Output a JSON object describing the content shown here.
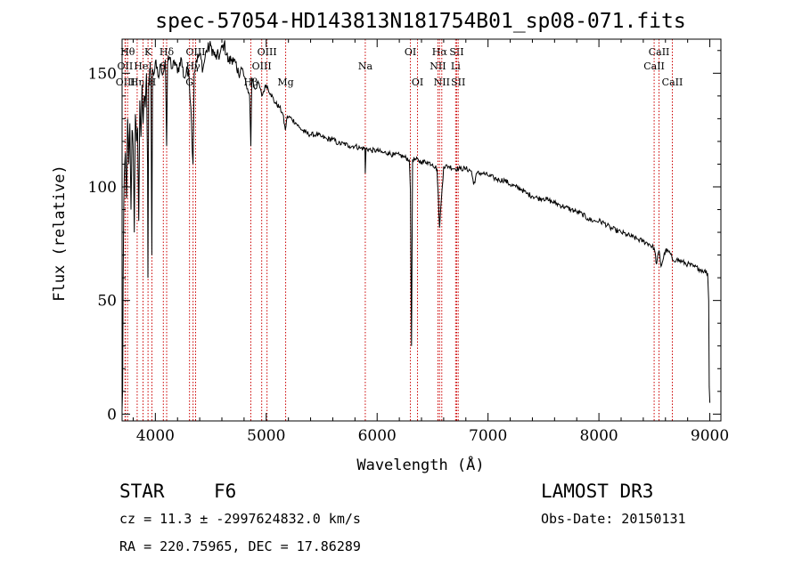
{
  "chart_data": {
    "type": "line",
    "title": "spec-57054-HD143813N181754B01_sp08-071.fits",
    "xlabel": "Wavelength (Å)",
    "ylabel": "Flux (relative)",
    "xlim": [
      3700,
      9100
    ],
    "ylim": [
      -3,
      165
    ],
    "x_ticks": [
      4000,
      5000,
      6000,
      7000,
      8000,
      9000
    ],
    "y_ticks": [
      0,
      50,
      100,
      150
    ],
    "grid": false,
    "series": [
      {
        "name": "spectrum",
        "x": [
          3700,
          3705,
          3710,
          3715,
          3720,
          3730,
          3740,
          3750,
          3760,
          3770,
          3780,
          3790,
          3800,
          3810,
          3820,
          3830,
          3840,
          3850,
          3860,
          3870,
          3880,
          3890,
          3900,
          3910,
          3920,
          3930,
          3933,
          3940,
          3950,
          3960,
          3968,
          3975,
          3990,
          4000,
          4010,
          4030,
          4050,
          4070,
          4090,
          4102,
          4110,
          4130,
          4150,
          4180,
          4200,
          4230,
          4260,
          4300,
          4320,
          4340,
          4350,
          4370,
          4400,
          4430,
          4460,
          4500,
          4540,
          4580,
          4620,
          4660,
          4700,
          4740,
          4780,
          4820,
          4850,
          4861,
          4870,
          4900,
          4930,
          4960,
          5000,
          5040,
          5080,
          5120,
          5150,
          5172,
          5190,
          5230,
          5270,
          5300,
          5350,
          5400,
          5450,
          5500,
          5550,
          5600,
          5650,
          5700,
          5750,
          5800,
          5850,
          5890,
          5893,
          5900,
          5950,
          6000,
          6050,
          6100,
          6150,
          6200,
          6250,
          6290,
          6300,
          6310,
          6320,
          6350,
          6400,
          6450,
          6500,
          6540,
          6563,
          6580,
          6600,
          6650,
          6700,
          6750,
          6800,
          6850,
          6870,
          6900,
          6950,
          7000,
          7050,
          7100,
          7150,
          7200,
          7250,
          7300,
          7350,
          7400,
          7450,
          7500,
          7550,
          7600,
          7650,
          7700,
          7750,
          7800,
          7850,
          7900,
          7950,
          8000,
          8050,
          8100,
          8150,
          8200,
          8250,
          8300,
          8350,
          8400,
          8450,
          8498,
          8520,
          8542,
          8560,
          8600,
          8640,
          8662,
          8700,
          8750,
          8800,
          8850,
          8900,
          8950,
          8980,
          8990,
          8995,
          9000
        ],
        "y": [
          2,
          10,
          60,
          92,
          105,
          115,
          95,
          130,
          110,
          128,
          90,
          125,
          118,
          80,
          132,
          120,
          126,
          85,
          138,
          122,
          145,
          128,
          140,
          135,
          150,
          110,
          60,
          145,
          152,
          148,
          70,
          152,
          150,
          155,
          152,
          148,
          154,
          150,
          156,
          118,
          154,
          157,
          152,
          155,
          150,
          157,
          148,
          152,
          135,
          110,
          150,
          156,
          158,
          152,
          160,
          162,
          157,
          158,
          163,
          155,
          157,
          150,
          152,
          145,
          140,
          118,
          148,
          143,
          146,
          140,
          145,
          141,
          137,
          135,
          132,
          125,
          131,
          130,
          128,
          126,
          124,
          123,
          123,
          122,
          121,
          121,
          119,
          119,
          118,
          118,
          117,
          117,
          106,
          117,
          116,
          116,
          115,
          115,
          114,
          114,
          113,
          112,
          98,
          30,
          112,
          112,
          111,
          111,
          110,
          108,
          82,
          95,
          109,
          109,
          108,
          108,
          108,
          107,
          101,
          106,
          106,
          105,
          104,
          103,
          103,
          101,
          100,
          99,
          97,
          96,
          95,
          95,
          94,
          93,
          92,
          91,
          90,
          89,
          88,
          86,
          85,
          85,
          84,
          82,
          81,
          80,
          79,
          78,
          77,
          76,
          75,
          73,
          66,
          72,
          65,
          72,
          71,
          68,
          68,
          67,
          66,
          65,
          64,
          63,
          62,
          50,
          12,
          5
        ]
      }
    ],
    "line_markers": [
      {
        "label": "Hθ",
        "x": 3750,
        "row": 1
      },
      {
        "label": "OII",
        "x": 3727,
        "row": 2
      },
      {
        "label": "OIII",
        "x": 3730,
        "row": 3
      },
      {
        "label": "Hη",
        "x": 3836,
        "row": 3
      },
      {
        "label": "K",
        "x": 3934,
        "row": 1
      },
      {
        "label": "HeI",
        "x": 3889,
        "row": 2
      },
      {
        "label": "H",
        "x": 3969,
        "row": 3
      },
      {
        "label": "Hδ",
        "x": 4102,
        "row": 1
      },
      {
        "label": "S",
        "x": 4072,
        "row": 2
      },
      {
        "label": "OIII",
        "x": 4363,
        "row": 1
      },
      {
        "label": "Hγ",
        "x": 4340,
        "row": 2
      },
      {
        "label": "G",
        "x": 4308,
        "row": 3
      },
      {
        "label": "OIII",
        "x": 5007,
        "row": 1
      },
      {
        "label": "OIII",
        "x": 4959,
        "row": 2
      },
      {
        "label": "Hβ",
        "x": 4861,
        "row": 3
      },
      {
        "label": "Mg",
        "x": 5175,
        "row": 3
      },
      {
        "label": "Na",
        "x": 5893,
        "row": 2
      },
      {
        "label": "OI",
        "x": 6300,
        "row": 1
      },
      {
        "label": "OI",
        "x": 6364,
        "row": 3
      },
      {
        "label": "Hα",
        "x": 6563,
        "row": 1
      },
      {
        "label": "SII",
        "x": 6717,
        "row": 1
      },
      {
        "label": "NII",
        "x": 6548,
        "row": 2
      },
      {
        "label": "Li",
        "x": 6708,
        "row": 2
      },
      {
        "label": "NII",
        "x": 6583,
        "row": 3
      },
      {
        "label": "SII",
        "x": 6731,
        "row": 3
      },
      {
        "label": "CaII",
        "x": 8542,
        "row": 1
      },
      {
        "label": "CaII",
        "x": 8498,
        "row": 2
      },
      {
        "label": "CaII",
        "x": 8662,
        "row": 3
      }
    ]
  },
  "info": {
    "object_class": "STAR",
    "subclass": "F6",
    "survey": "LAMOST DR3",
    "cz": "cz = 11.3 ± -2997624832.0 km/s",
    "obs_date": "Obs-Date: 20150131",
    "coords": "RA = 220.75965, DEC =  17.86289"
  },
  "colors": {
    "line_marker": "#cc0000",
    "spectrum": "#000000",
    "axis": "#000000"
  }
}
